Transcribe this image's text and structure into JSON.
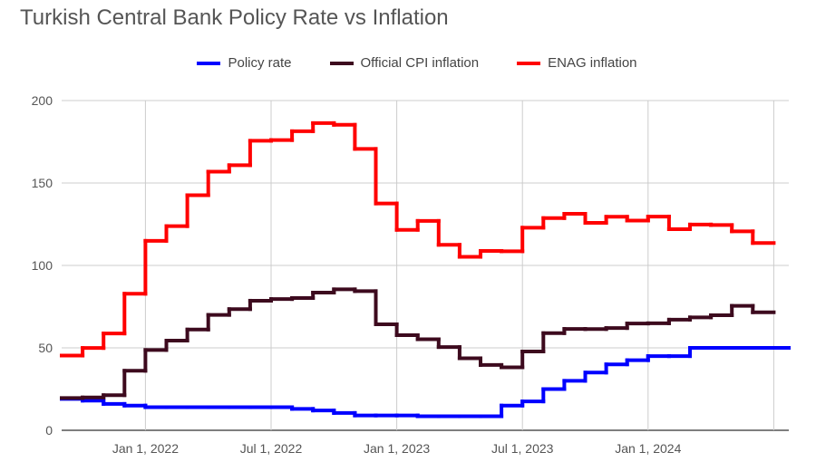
{
  "chart_data": {
    "type": "line",
    "step": true,
    "title": "Turkish Central Bank Policy Rate vs Inflation",
    "xlabel": "",
    "ylabel": "",
    "ylim": [
      0,
      200
    ],
    "yticks": [
      "0",
      "50",
      "100",
      "150",
      "200"
    ],
    "xticks": [
      {
        "date": "2022-01",
        "label": "Jan 1, 2022"
      },
      {
        "date": "2022-07",
        "label": "Jul 1, 2022"
      },
      {
        "date": "2023-01",
        "label": "Jan 1, 2023"
      },
      {
        "date": "2023-07",
        "label": "Jul 1, 2023"
      },
      {
        "date": "2024-01",
        "label": "Jan 1, 2024"
      },
      {
        "date": "2024-07",
        "label": ""
      }
    ],
    "grid": true,
    "legend_position": "top",
    "x": [
      "2021-09",
      "2021-10",
      "2021-11",
      "2021-12",
      "2022-01",
      "2022-02",
      "2022-03",
      "2022-04",
      "2022-05",
      "2022-06",
      "2022-07",
      "2022-08",
      "2022-09",
      "2022-10",
      "2022-11",
      "2022-12",
      "2023-01",
      "2023-02",
      "2023-03",
      "2023-04",
      "2023-05",
      "2023-06",
      "2023-07",
      "2023-08",
      "2023-09",
      "2023-10",
      "2023-11",
      "2023-12",
      "2024-01",
      "2024-02",
      "2024-03",
      "2024-04",
      "2024-05",
      "2024-06"
    ],
    "series": [
      {
        "name": "Policy rate",
        "color": "#0000ff",
        "values": [
          19,
          18,
          16,
          15,
          14,
          14,
          14,
          14,
          14,
          14,
          14,
          13,
          12,
          10.5,
          9,
          9,
          9,
          8.5,
          8.5,
          8.5,
          8.5,
          15,
          17.5,
          25,
          30,
          35,
          40,
          42.5,
          45,
          45,
          50,
          50,
          50,
          50
        ]
      },
      {
        "name": "Official CPI inflation",
        "color": "#3d0a1e",
        "values": [
          19.6,
          19.9,
          21.3,
          36.1,
          48.7,
          54.4,
          61.1,
          70.0,
          73.5,
          78.6,
          79.6,
          80.2,
          83.5,
          85.5,
          84.4,
          64.3,
          57.7,
          55.2,
          50.5,
          43.7,
          39.6,
          38.2,
          47.8,
          58.9,
          61.5,
          61.4,
          62.0,
          64.8,
          64.9,
          67.1,
          68.5,
          69.8,
          75.5,
          71.6
        ]
      },
      {
        "name": "ENAG inflation",
        "color": "#ff0000",
        "values": [
          45.3,
          49.9,
          58.7,
          82.8,
          114.9,
          123.8,
          142.6,
          156.9,
          160.8,
          175.6,
          176.0,
          181.4,
          186.3,
          185.3,
          170.7,
          137.6,
          121.6,
          127.0,
          112.5,
          105.2,
          108.8,
          108.6,
          122.9,
          128.7,
          131.3,
          125.8,
          129.5,
          127.2,
          129.6,
          122.0,
          124.8,
          124.5,
          120.7,
          113.6
        ]
      }
    ]
  }
}
